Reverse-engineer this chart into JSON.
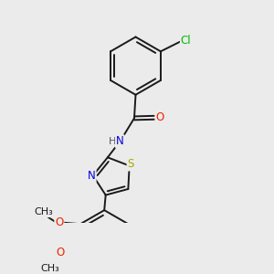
{
  "background_color": "#ebebeb",
  "bond_color": "#1a1a1a",
  "bond_width": 1.4,
  "atoms": {
    "Cl": {
      "color": "#00bb00"
    },
    "O": {
      "color": "#ee2200"
    },
    "N": {
      "color": "#0000dd"
    },
    "S": {
      "color": "#aaaa00"
    },
    "H": {
      "color": "#555555"
    }
  },
  "figsize": [
    3.0,
    3.0
  ],
  "dpi": 100
}
